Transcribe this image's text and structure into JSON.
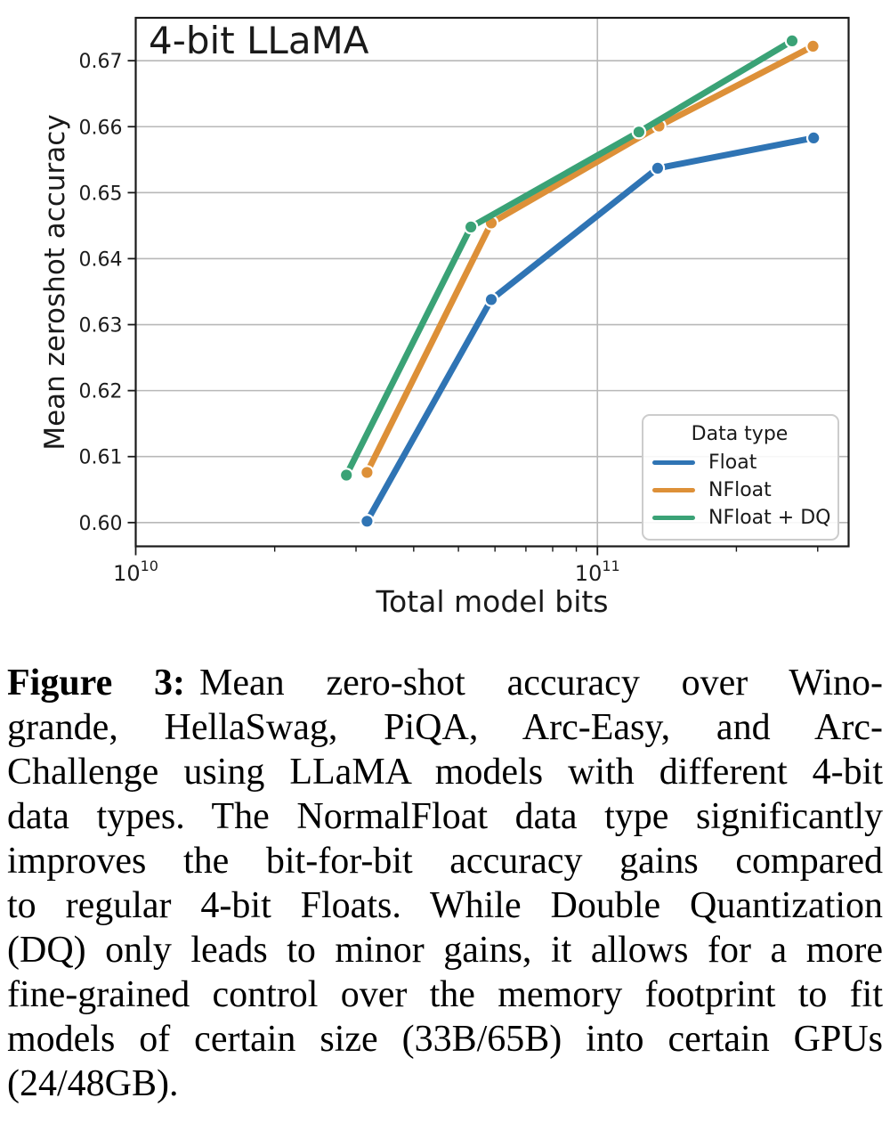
{
  "chart_data": {
    "type": "line",
    "title": "4-bit LLaMA",
    "xlabel": "Total model bits",
    "ylabel": "Mean zeroshot accuracy",
    "x_scale": "log",
    "xlim": [
      10000000000.0,
      350000000000.0
    ],
    "ylim": [
      0.5964,
      0.6765
    ],
    "y_ticks": [
      0.6,
      0.61,
      0.62,
      0.63,
      0.64,
      0.65,
      0.66,
      0.67
    ],
    "x_major_ticks": [
      10000000000.0,
      100000000000.0
    ],
    "x_minor_ticks": [
      20000000000.0,
      30000000000.0,
      40000000000.0,
      50000000000.0,
      60000000000.0,
      70000000000.0,
      80000000000.0,
      90000000000.0,
      200000000000.0,
      300000000000.0
    ],
    "grid": true,
    "grid_color": "#b8b8b8",
    "legend": {
      "title": "Data type",
      "position": "lower right"
    },
    "series": [
      {
        "name": "Float",
        "color": "#2f74b4",
        "x": [
          31700000000.0,
          58900000000.0,
          135000000000.0,
          294000000000.0
        ],
        "y": [
          0.6002,
          0.6338,
          0.6537,
          0.6583
        ]
      },
      {
        "name": "NFloat",
        "color": "#dd9038",
        "x": [
          31700000000.0,
          58900000000.0,
          136000000000.0,
          293000000000.0
        ],
        "y": [
          0.6076,
          0.6454,
          0.6601,
          0.6722
        ]
      },
      {
        "name": "NFloat + DQ",
        "color": "#3aa276",
        "x": [
          28600000000.0,
          53200000000.0,
          123000000000.0,
          264000000000.0
        ],
        "y": [
          0.6072,
          0.6448,
          0.6592,
          0.673
        ]
      }
    ]
  },
  "caption": {
    "label": "Figure 3:",
    "lines": [
      "Mean zero-shot accuracy over Wino-",
      "grande, HellaSwag, PiQA, Arc-Easy, and Arc-",
      "Challenge using LLaMA models with different 4-bit",
      "data types. The NormalFloat data type significantly",
      "improves the bit-for-bit accuracy gains compared",
      "to regular 4-bit Floats. While Double Quantization",
      "(DQ) only leads to minor gains, it allows for a more",
      "fine-grained control over the memory footprint to fit",
      "models of certain size (33B/65B) into certain GPUs",
      "(24/48GB)."
    ]
  }
}
